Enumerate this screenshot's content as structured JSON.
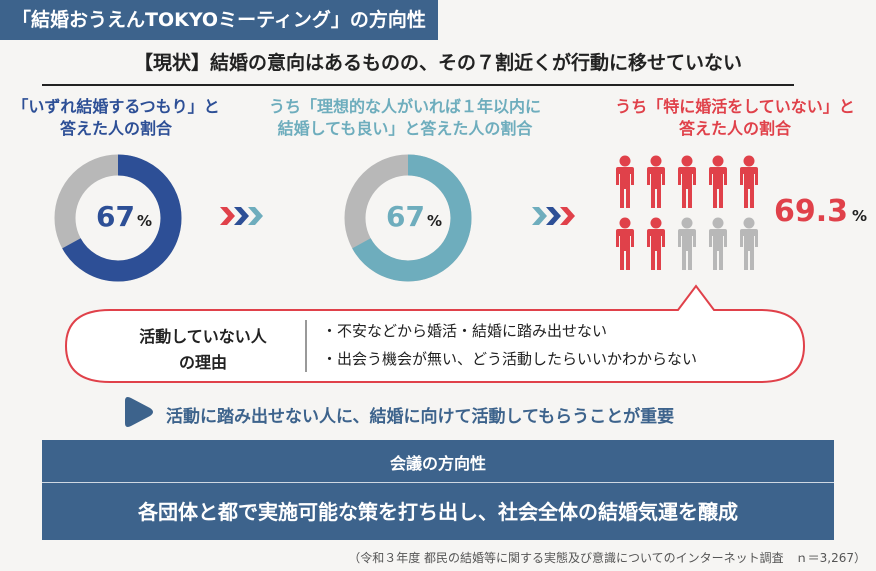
{
  "title": "「結婚おうえんTOKYOミーティング」の方向性",
  "headline": "【現状】結婚の意向はあるものの、その７割近くが行動に移せていない",
  "columns": [
    {
      "label_line1": "「いずれ結婚するつもり」と",
      "label_line2": "答えた人の割合",
      "value": "67",
      "unit": "%",
      "fraction": 0.67,
      "color": "#2d4f96"
    },
    {
      "label_line1": "うち「理想的な人がいれば１年以内に",
      "label_line2": "結婚しても良い」と答えた人の割合",
      "value": "67",
      "unit": "%",
      "fraction": 0.67,
      "color": "#6eadbd"
    },
    {
      "label_line1": "うち「特に婚活をしていない」と",
      "label_line2": "答えた人の割合",
      "value": "69.3",
      "unit": "%",
      "figures_highlighted": 7,
      "figures_total": 10,
      "color": "#e0414a"
    }
  ],
  "reasons": {
    "label_line1": "活動していない人",
    "label_line2": "の理由",
    "items": [
      "・不安などから婚活・結婚に踏み出せない",
      "・出会う機会が無い、どう活動したらいいかわからない"
    ]
  },
  "conclusion": "活動に踏み出せない人に、結婚に向けて活動してもらうことが重要",
  "direction_box": {
    "title": "会議の方向性",
    "text": "各団体と都で実施可能な策を打ち出し、社会全体の結婚気運を醸成"
  },
  "source": "（令和３年度 都民の結婚等に関する実態及び意識についてのインターネット調査　ｎ＝3,267）",
  "colors": {
    "banner": "#3d638c",
    "navy": "#2d4f96",
    "teal": "#6eadbd",
    "red": "#e0414a",
    "gray": "#b8b8b8"
  }
}
